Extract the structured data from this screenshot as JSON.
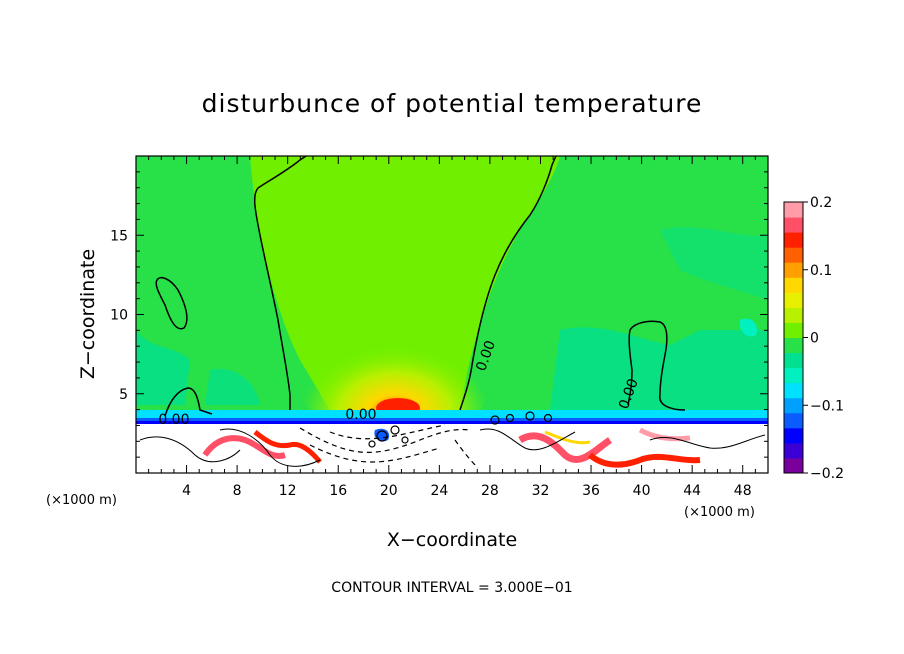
{
  "chart_data": {
    "type": "heatmap",
    "title": "disturbunce of potential temperature",
    "xlabel": "X−coordinate",
    "ylabel": "Z−coordinate",
    "x_unit": "(×1000 m)",
    "y_unit": "(×1000 m)",
    "xlim": [
      0,
      50
    ],
    "ylim": [
      0,
      20
    ],
    "x_ticks": [
      4,
      8,
      12,
      16,
      20,
      24,
      28,
      32,
      36,
      40,
      44,
      48
    ],
    "y_ticks": [
      5,
      10,
      15
    ],
    "colorbar": {
      "ticks": [
        {
          "value": 0.2,
          "label": "0.2"
        },
        {
          "value": 0.1,
          "label": "0.1"
        },
        {
          "value": 0,
          "label": "0"
        },
        {
          "value": -0.1,
          "label": "−0.1"
        },
        {
          "value": -0.2,
          "label": "−0.2"
        }
      ],
      "colors": [
        "#7a009e",
        "#3b00d6",
        "#0000ff",
        "#0a5cff",
        "#00a0ff",
        "#00e0ff",
        "#00f0c0",
        "#00e090",
        "#28e048",
        "#70f000",
        "#b8f000",
        "#e8f000",
        "#ffd800",
        "#ffa000",
        "#ff6000",
        "#ff2000",
        "#ff5068",
        "#ff9ca8"
      ]
    },
    "contour_labels": [
      {
        "text": "0.00",
        "x": 3,
        "z": 3.1
      },
      {
        "text": "0.00",
        "x": 17.8,
        "z": 3.4
      },
      {
        "text": "0.00",
        "x": 28,
        "z": 7.3
      },
      {
        "text": "0.00",
        "x": 39.3,
        "z": 4.9
      }
    ],
    "footnote": "CONTOUR INTERVAL = 3.000E−01"
  }
}
